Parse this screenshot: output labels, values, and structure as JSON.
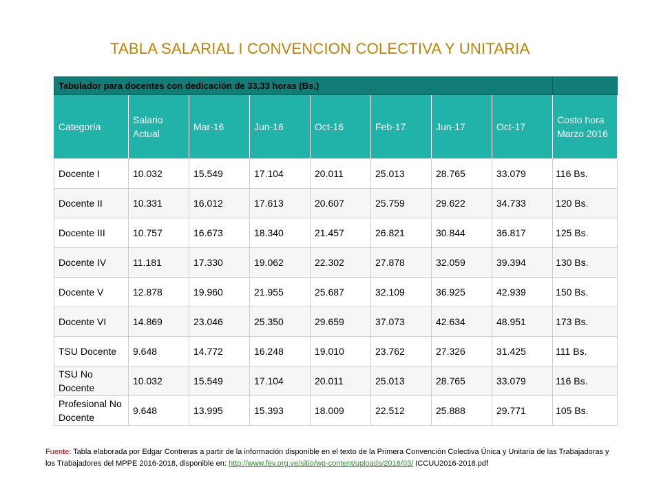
{
  "title": "TABLA SALARIAL  I CONVENCION COLECTIVA Y UNITARIA",
  "table": {
    "caption": "Tabulador para docentes con dedicación de 33,33 horas (Bs.)",
    "columns": [
      "Categoría",
      "Salario Actual",
      "Mar-16",
      "Jun-16",
      "Oct-16",
      "Feb-17",
      "Jun-17",
      "Oct-17",
      "Costo hora Marzo 2016"
    ],
    "rows": [
      [
        "Docente I",
        "10.032",
        "15.549",
        "17.104",
        "20.011",
        "25.013",
        "28.765",
        "33.079",
        " 116 Bs."
      ],
      [
        "Docente II",
        "10.331",
        "16.012",
        "17.613",
        "20.607",
        "25.759",
        "29.622",
        "34.733",
        "120 Bs."
      ],
      [
        "Docente III",
        "10.757",
        "16.673",
        "18.340",
        "21.457",
        "26.821",
        "30.844",
        "36.817",
        "125 Bs."
      ],
      [
        "Docente IV",
        "11.181",
        "17.330",
        "19.062",
        "22.302",
        "27.878",
        "32.059",
        "39.394",
        "130 Bs."
      ],
      [
        "Docente V",
        "12.878",
        "19.960",
        "21.955",
        "25.687",
        "32.109",
        "36.925",
        "42.939",
        "150 Bs."
      ],
      [
        "Docente VI",
        "14.869",
        "23.046",
        "25.350",
        "29.659",
        "37.073",
        "42.634",
        "48.951",
        "173 Bs."
      ],
      [
        "TSU Docente",
        "9.648",
        "14.772",
        "16.248",
        "19.010",
        "23.762",
        "27.326",
        "31.425",
        "111 Bs."
      ],
      [
        "TSU No Docente",
        "10.032",
        "15.549",
        "17.104",
        "20.011",
        "25.013",
        "28.765",
        "33.079",
        "116 Bs."
      ],
      [
        "Profesional No Docente",
        "9.648",
        "13.995",
        "15.393",
        "18.009",
        "22.512",
        "25.888",
        "29.771",
        "105 Bs."
      ]
    ]
  },
  "source": {
    "label": "Fuente",
    "text": ": Tabla elaborada por Edgar Contreras a partir de la información disponible en el texto de la Primera Convención Colectiva Única y Unitaria de las Trabajadoras y los Trabajadores del MPPE 2016-2018,  disponible en:   ",
    "link": "http://www.fev.org.ve/sitio/wp-content/uploads/2016/03/",
    "suffix": " ICCUU2016-2018.pdf"
  },
  "colors": {
    "title": "#B8860B",
    "header_dark": "#127D76",
    "header_light": "#21B3AA",
    "source_label": "#C00000",
    "link": "#2F8F2F"
  }
}
